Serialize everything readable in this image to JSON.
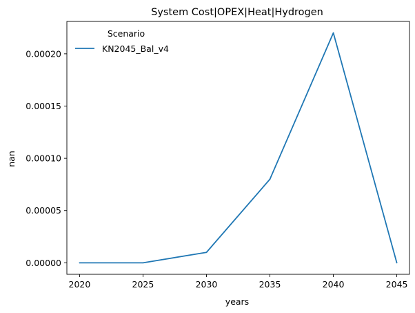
{
  "chart_data": {
    "type": "line",
    "title": "System Cost|OPEX|Heat|Hydrogen",
    "xlabel": "years",
    "ylabel": "nan",
    "x": [
      2020,
      2025,
      2030,
      2035,
      2040,
      2045
    ],
    "xticks": [
      "2020",
      "2025",
      "2030",
      "2035",
      "2040",
      "2045"
    ],
    "yticks": [
      {
        "value": 0.0,
        "label": "0.00000"
      },
      {
        "value": 5e-05,
        "label": "0.00005"
      },
      {
        "value": 0.0001,
        "label": "0.00010"
      },
      {
        "value": 0.00015,
        "label": "0.00015"
      },
      {
        "value": 0.0002,
        "label": "0.00020"
      }
    ],
    "xlim": [
      2019,
      2046
    ],
    "ylim": [
      -1.1e-05,
      0.000231
    ],
    "series": [
      {
        "name": "KN2045_Bal_v4",
        "color": "#1f77b4",
        "values": [
          0.0,
          0.0,
          1e-05,
          8e-05,
          0.00022,
          0.0
        ]
      }
    ],
    "legend": {
      "title": "Scenario",
      "placement": "top-left"
    },
    "grid": false
  }
}
